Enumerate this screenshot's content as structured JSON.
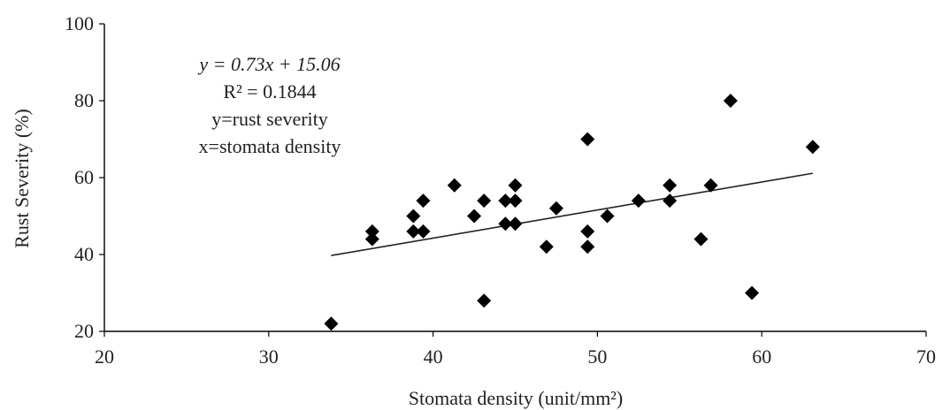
{
  "chart_data": {
    "type": "scatter",
    "xlabel": "Stomata density (unit/mm²)",
    "ylabel": "Rust Severity (%)",
    "xlim": [
      20,
      70
    ],
    "ylim": [
      20,
      100
    ],
    "x_ticks": [
      20,
      30,
      40,
      50,
      60,
      70
    ],
    "y_ticks": [
      20,
      40,
      60,
      80,
      100
    ],
    "grid": false,
    "legend": "none",
    "marker": "diamond",
    "marker_color": "#000000",
    "series": [
      {
        "points": [
          {
            "x": 33.8,
            "y": 22
          },
          {
            "x": 36.3,
            "y": 46
          },
          {
            "x": 36.3,
            "y": 44
          },
          {
            "x": 38.8,
            "y": 50
          },
          {
            "x": 38.8,
            "y": 46
          },
          {
            "x": 39.4,
            "y": 54
          },
          {
            "x": 39.4,
            "y": 46
          },
          {
            "x": 41.3,
            "y": 58
          },
          {
            "x": 42.5,
            "y": 50
          },
          {
            "x": 43.1,
            "y": 54
          },
          {
            "x": 43.1,
            "y": 28
          },
          {
            "x": 44.4,
            "y": 54
          },
          {
            "x": 44.4,
            "y": 48
          },
          {
            "x": 45.0,
            "y": 58
          },
          {
            "x": 45.0,
            "y": 54
          },
          {
            "x": 45.0,
            "y": 48
          },
          {
            "x": 46.9,
            "y": 42
          },
          {
            "x": 47.5,
            "y": 52
          },
          {
            "x": 49.4,
            "y": 70
          },
          {
            "x": 49.4,
            "y": 46
          },
          {
            "x": 49.4,
            "y": 42
          },
          {
            "x": 50.6,
            "y": 50
          },
          {
            "x": 52.5,
            "y": 54
          },
          {
            "x": 54.4,
            "y": 58
          },
          {
            "x": 54.4,
            "y": 54
          },
          {
            "x": 56.3,
            "y": 44
          },
          {
            "x": 56.9,
            "y": 58
          },
          {
            "x": 58.1,
            "y": 80
          },
          {
            "x": 59.4,
            "y": 30
          },
          {
            "x": 63.1,
            "y": 68
          }
        ]
      }
    ],
    "trendline": {
      "x_start": 33.8,
      "x_end": 63.1,
      "slope": 0.73,
      "intercept": 15.06
    },
    "annotation": {
      "equation": "y = 0.73x + 15.06",
      "r_squared": "R² = 0.1844",
      "y_def": "y=rust severity",
      "x_def": "x=stomata density"
    }
  }
}
